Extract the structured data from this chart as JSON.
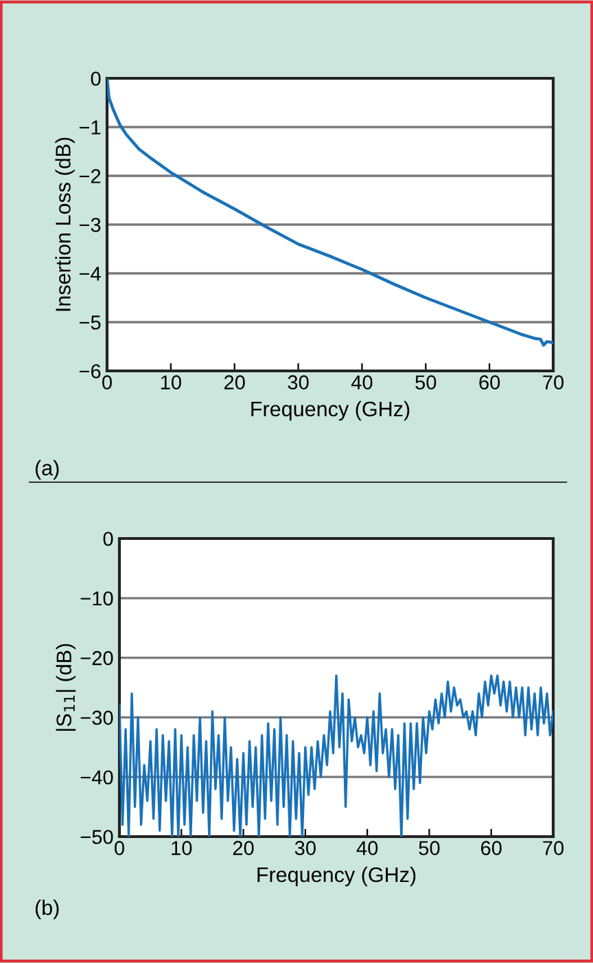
{
  "chart_data": [
    {
      "type": "line",
      "xlabel": "Frequency (GHz)",
      "ylabel": "Insertion Loss (dB)",
      "xlim": [
        0,
        70
      ],
      "ylim": [
        -6,
        0
      ],
      "xticks": [
        0,
        10,
        20,
        30,
        40,
        50,
        60,
        70
      ],
      "yticks": [
        {
          "value": -6,
          "label": "−6"
        },
        {
          "value": -5,
          "label": "−5"
        },
        {
          "value": -4,
          "label": "−4"
        },
        {
          "value": -3,
          "label": "−3"
        },
        {
          "value": -2,
          "label": "−2"
        },
        {
          "value": -1,
          "label": "−1"
        },
        0
      ],
      "grid": "y",
      "annotations": [
        "(a)"
      ],
      "series": [
        {
          "color": "#1a72b9",
          "x": [
            0,
            0.3,
            1,
            2,
            3,
            5,
            7,
            10,
            15,
            20,
            25,
            30,
            35,
            40,
            45,
            50,
            55,
            60,
            65,
            67,
            68,
            68.5,
            69,
            70
          ],
          "values": [
            0,
            -0.4,
            -0.65,
            -0.95,
            -1.15,
            -1.45,
            -1.65,
            -1.93,
            -2.33,
            -2.68,
            -3.05,
            -3.4,
            -3.65,
            -3.92,
            -4.22,
            -4.5,
            -4.75,
            -5.0,
            -5.25,
            -5.33,
            -5.35,
            -5.47,
            -5.4,
            -5.42
          ]
        }
      ]
    },
    {
      "type": "line",
      "xlabel": "Frequency (GHz)",
      "ylabel": "|S$_{11}$| (dB)",
      "xlim": [
        0,
        70
      ],
      "ylim": [
        -50,
        0
      ],
      "xticks": [
        0,
        10,
        20,
        30,
        40,
        50,
        60,
        70
      ],
      "yticks": [
        {
          "value": -50,
          "label": "−50"
        },
        {
          "value": -40,
          "label": "−40"
        },
        {
          "value": -30,
          "label": "−30"
        },
        {
          "value": -20,
          "label": "−20"
        },
        {
          "value": -10,
          "label": "−10"
        },
        0
      ],
      "grid": "y",
      "annotations": [
        "(b)"
      ],
      "series": [
        {
          "color": "#1a72b9",
          "x": [
            0,
            0.5,
            1,
            1.5,
            2,
            2.5,
            3,
            3.5,
            4,
            4.5,
            5,
            5.5,
            6,
            6.5,
            7,
            7.5,
            8,
            8.5,
            9,
            9.5,
            10,
            10.5,
            11,
            11.5,
            12,
            12.5,
            13,
            13.5,
            14,
            14.5,
            15,
            15.5,
            16,
            16.5,
            17,
            17.5,
            18,
            18.5,
            19,
            19.5,
            20,
            20.5,
            21,
            21.5,
            22,
            22.5,
            23,
            23.5,
            24,
            24.5,
            25,
            25.5,
            26,
            26.5,
            27,
            27.5,
            28,
            28.5,
            29,
            29.5,
            30,
            30.5,
            31,
            31.5,
            32,
            32.5,
            33,
            33.5,
            34,
            34.5,
            35,
            35.5,
            36,
            36.5,
            37,
            37.5,
            38,
            38.5,
            39,
            39.5,
            40,
            40.5,
            41,
            41.5,
            42,
            42.5,
            43,
            43.5,
            44,
            44.5,
            45,
            45.5,
            46,
            46.5,
            47,
            47.5,
            48,
            48.5,
            49,
            49.5,
            50,
            50.5,
            51,
            51.5,
            52,
            52.5,
            53,
            53.5,
            54,
            54.5,
            55,
            55.5,
            56,
            56.5,
            57,
            57.5,
            58,
            58.5,
            59,
            59.5,
            60,
            60.5,
            61,
            61.5,
            62,
            62.5,
            63,
            63.5,
            64,
            64.5,
            65,
            65.5,
            66,
            66.5,
            67,
            67.5,
            68,
            68.5,
            69,
            69.5,
            70
          ],
          "values": [
            -28,
            -48,
            -32,
            -50,
            -26,
            -45,
            -30,
            -48,
            -38,
            -44,
            -34,
            -47,
            -32,
            -49,
            -33,
            -44,
            -34,
            -50,
            -32,
            -50,
            -33,
            -48,
            -35,
            -50,
            -33,
            -44,
            -30,
            -46,
            -34,
            -50,
            -29,
            -42,
            -33,
            -47,
            -30,
            -44,
            -35,
            -49,
            -37,
            -50,
            -36,
            -48,
            -34,
            -45,
            -35,
            -50,
            -33,
            -47,
            -31,
            -44,
            -32,
            -48,
            -30,
            -45,
            -33,
            -50,
            -34,
            -47,
            -36,
            -50,
            -35,
            -43,
            -35,
            -42,
            -34,
            -40,
            -33,
            -38,
            -29,
            -36,
            -23,
            -35,
            -26,
            -45,
            -27,
            -34,
            -30,
            -35,
            -33,
            -36,
            -30,
            -38,
            -29,
            -39,
            -26,
            -36,
            -32,
            -40,
            -32,
            -42,
            -33,
            -50,
            -31,
            -47,
            -31,
            -42,
            -31,
            -41,
            -30,
            -36,
            -29,
            -32,
            -27,
            -31,
            -26,
            -30,
            -24,
            -29,
            -25,
            -28,
            -27,
            -30,
            -29,
            -32,
            -29,
            -33,
            -26,
            -30,
            -24,
            -28,
            -23,
            -26,
            -23,
            -28,
            -24,
            -29,
            -24,
            -30,
            -25,
            -30,
            -25,
            -33,
            -25,
            -32,
            -26,
            -33,
            -25,
            -31,
            -26,
            -33,
            -29
          ]
        }
      ]
    }
  ]
}
